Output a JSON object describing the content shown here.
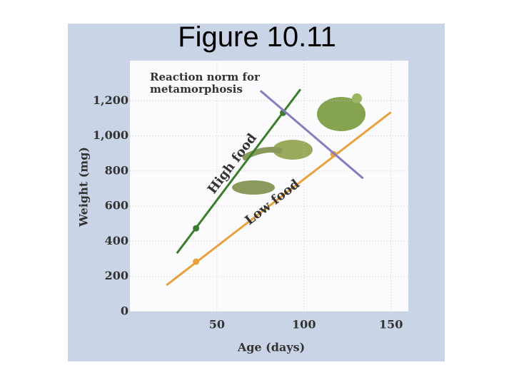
{
  "title": "Figure 10.11",
  "chart_data": {
    "type": "line",
    "xlabel": "Age (days)",
    "ylabel": "Weight (mg)",
    "xlim": [
      0,
      160
    ],
    "ylim": [
      0,
      1400
    ],
    "xticks": [
      50,
      100,
      150
    ],
    "yticks": [
      0,
      200,
      400,
      600,
      800,
      {
        "value": 1000,
        "label": "1,000"
      },
      {
        "value": 1200,
        "label": "1,200"
      }
    ],
    "grid": true,
    "series": [
      {
        "name": "High food",
        "color": "#3b7d2f",
        "x": [
          27,
          98
        ],
        "values": [
          332,
          1265
        ],
        "points": {
          "x": [
            38,
            88
          ],
          "values": [
            474,
            1131
          ]
        }
      },
      {
        "name": "Low food",
        "color": "#e9a23b",
        "x": [
          21,
          150
        ],
        "values": [
          150,
          1135
        ],
        "points": {
          "x": [
            38,
            117
          ],
          "values": [
            284,
            896
          ]
        }
      },
      {
        "name": "Reaction norm for metamorphosis",
        "color": "#8a7bbd",
        "x": [
          75,
          134
        ],
        "values": [
          1257,
          758
        ]
      }
    ]
  }
}
